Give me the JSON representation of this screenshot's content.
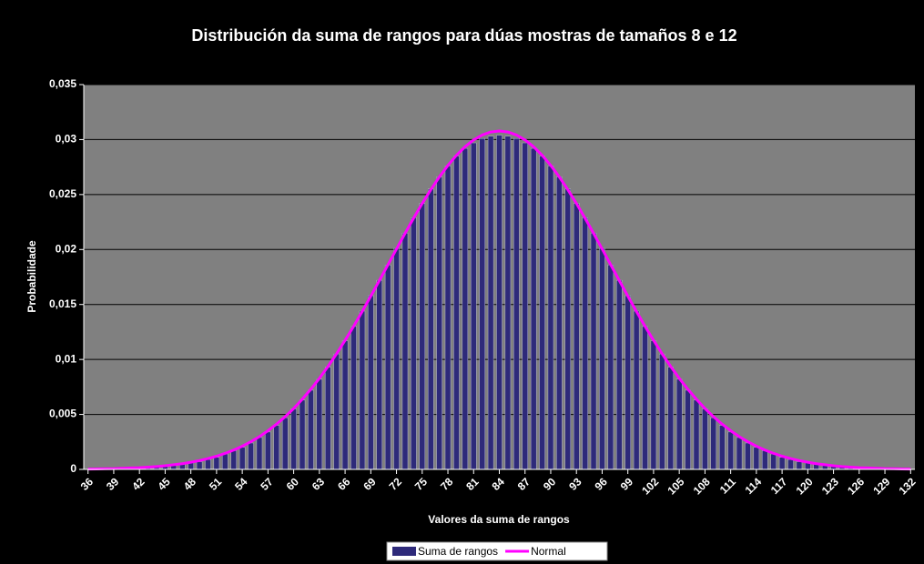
{
  "chart_data": {
    "type": "bar",
    "title": "Distribución da suma de rangos para dúas mostras de tamaños 8 e 12",
    "x_label": "Valores da suma de rangos",
    "y_label": "Probabilidade",
    "x": [
      36,
      37,
      38,
      39,
      40,
      41,
      42,
      43,
      44,
      45,
      46,
      47,
      48,
      49,
      50,
      51,
      52,
      53,
      54,
      55,
      56,
      57,
      58,
      59,
      60,
      61,
      62,
      63,
      64,
      65,
      66,
      67,
      68,
      69,
      70,
      71,
      72,
      73,
      74,
      75,
      76,
      77,
      78,
      79,
      80,
      81,
      82,
      83,
      84,
      85,
      86,
      87,
      88,
      89,
      90,
      91,
      92,
      93,
      94,
      95,
      96,
      97,
      98,
      99,
      100,
      101,
      102,
      103,
      104,
      105,
      106,
      107,
      108,
      109,
      110,
      111,
      112,
      113,
      114,
      115,
      116,
      117,
      118,
      119,
      120,
      121,
      122,
      123,
      124,
      125,
      126,
      127,
      128,
      129,
      130,
      131,
      132
    ],
    "xlim": [
      35.5,
      132.5
    ],
    "xticks": [
      36,
      39,
      42,
      45,
      48,
      51,
      54,
      57,
      60,
      63,
      66,
      69,
      72,
      75,
      78,
      81,
      84,
      87,
      90,
      93,
      96,
      99,
      102,
      105,
      108,
      111,
      114,
      117,
      120,
      123,
      126,
      129,
      132
    ],
    "ylim": [
      0,
      0.035
    ],
    "yticks": [
      0,
      {
        "value": 0.005,
        "label": "0,005"
      },
      {
        "value": 0.01,
        "label": "0,01"
      },
      {
        "value": 0.015,
        "label": "0,015"
      },
      {
        "value": 0.02,
        "label": "0,02"
      },
      {
        "value": 0.025,
        "label": "0,025"
      },
      {
        "value": 0.03,
        "label": "0,03"
      },
      {
        "value": 0.035,
        "label": "0,035"
      }
    ],
    "grid": true,
    "legend": "bottom",
    "series": [
      {
        "name": "Suma de rangos",
        "type": "bar",
        "color": "#2e2a7a",
        "values": [
          0,
          0,
          0,
          0.0001,
          0.0001,
          0.0001,
          0.0001,
          0.0002,
          0.0002,
          0.0003,
          0.0004,
          0.0005,
          0.0006,
          0.0007,
          0.0009,
          0.0011,
          0.0014,
          0.0017,
          0.002,
          0.0024,
          0.0029,
          0.0034,
          0.004,
          0.0047,
          0.0055,
          0.0063,
          0.0072,
          0.0082,
          0.0093,
          0.0105,
          0.0117,
          0.013,
          0.0144,
          0.0158,
          0.0172,
          0.0186,
          0.0201,
          0.0215,
          0.0229,
          0.0242,
          0.0255,
          0.0266,
          0.0276,
          0.0285,
          0.0292,
          0.0297,
          0.0301,
          0.0303,
          0.0304,
          0.0303,
          0.0301,
          0.0297,
          0.0292,
          0.0285,
          0.0276,
          0.0266,
          0.0255,
          0.0242,
          0.0229,
          0.0215,
          0.0201,
          0.0186,
          0.0172,
          0.0158,
          0.0144,
          0.013,
          0.0117,
          0.0105,
          0.0093,
          0.0082,
          0.0072,
          0.0063,
          0.0055,
          0.0047,
          0.004,
          0.0034,
          0.0029,
          0.0024,
          0.002,
          0.0017,
          0.0014,
          0.0011,
          0.0009,
          0.0007,
          0.0006,
          0.0005,
          0.0004,
          0.0003,
          0.0002,
          0.0002,
          0.0001,
          0.0001,
          0.0001,
          0.0001,
          0,
          0,
          0
        ]
      },
      {
        "name": "Normal",
        "type": "line",
        "color": "#ff00ff",
        "values": [
          3e-05,
          4e-05,
          6e-05,
          7e-05,
          0.0001,
          0.00013,
          0.00016,
          0.00021,
          0.00026,
          0.00033,
          0.00042,
          0.00052,
          0.00065,
          0.0008,
          0.00099,
          0.0012,
          0.00146,
          0.00176,
          0.00211,
          0.00252,
          0.00298,
          0.00352,
          0.00412,
          0.00479,
          0.00554,
          0.00638,
          0.00729,
          0.00828,
          0.00936,
          0.01051,
          0.01174,
          0.01302,
          0.01437,
          0.01576,
          0.01718,
          0.01861,
          0.02005,
          0.02147,
          0.02286,
          0.02419,
          0.02544,
          0.0266,
          0.02765,
          0.02857,
          0.02935,
          0.02997,
          0.03041,
          0.03069,
          0.03078,
          0.03069,
          0.03041,
          0.02997,
          0.02935,
          0.02857,
          0.02765,
          0.0266,
          0.02544,
          0.02419,
          0.02286,
          0.02147,
          0.02005,
          0.01861,
          0.01718,
          0.01576,
          0.01437,
          0.01302,
          0.01174,
          0.01051,
          0.00936,
          0.00828,
          0.00729,
          0.00638,
          0.00554,
          0.00479,
          0.00412,
          0.00352,
          0.00298,
          0.00252,
          0.00211,
          0.00176,
          0.00146,
          0.0012,
          0.00099,
          0.0008,
          0.00065,
          0.00052,
          0.00042,
          0.00033,
          0.00026,
          0.00021,
          0.00016,
          0.00013,
          0.0001,
          7e-05,
          6e-05,
          4e-05,
          3e-05
        ]
      }
    ]
  }
}
